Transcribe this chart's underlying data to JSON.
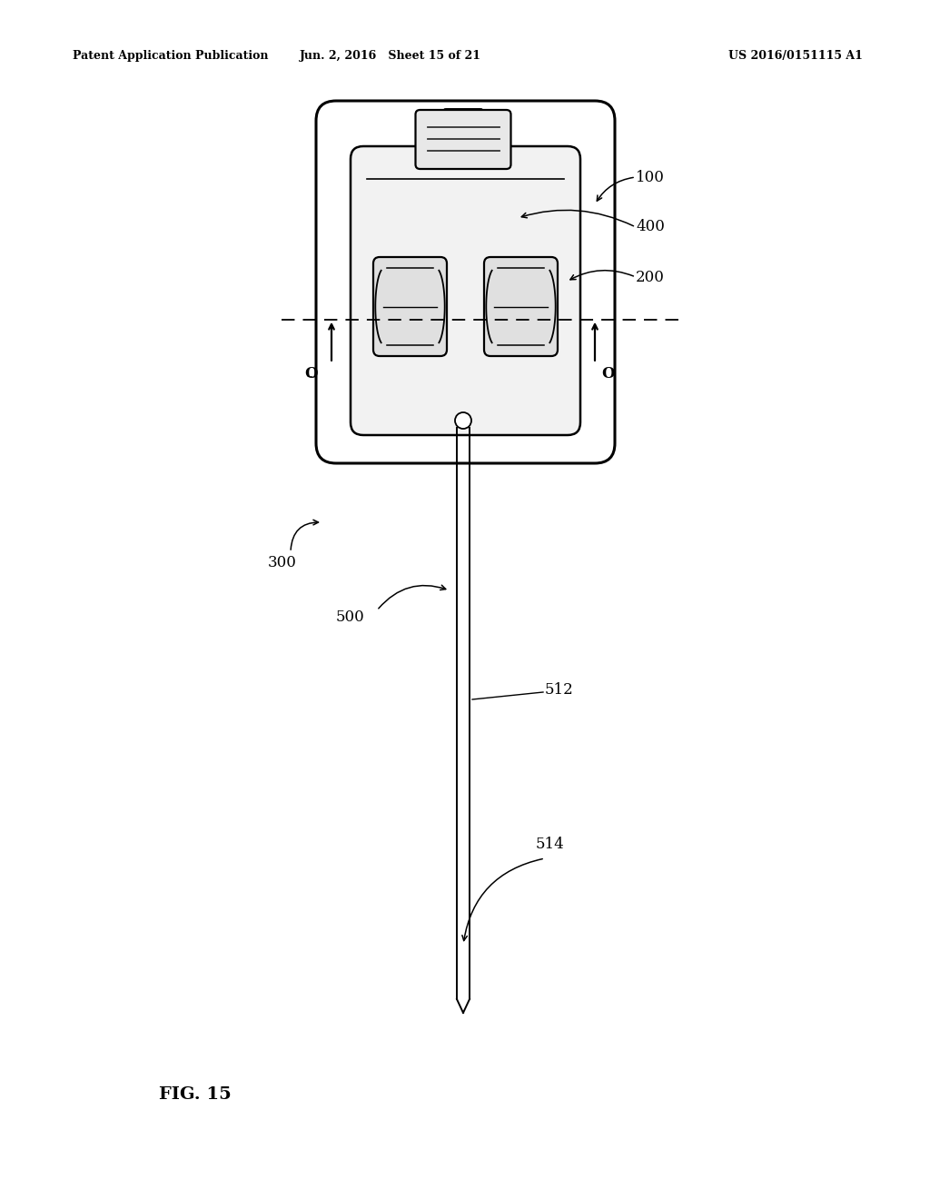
{
  "bg_color": "#ffffff",
  "header_left": "Patent Application Publication",
  "header_mid": "Jun. 2, 2016   Sheet 15 of 21",
  "header_right": "US 2016/0151115 A1",
  "fig_label": "FIG. 15"
}
